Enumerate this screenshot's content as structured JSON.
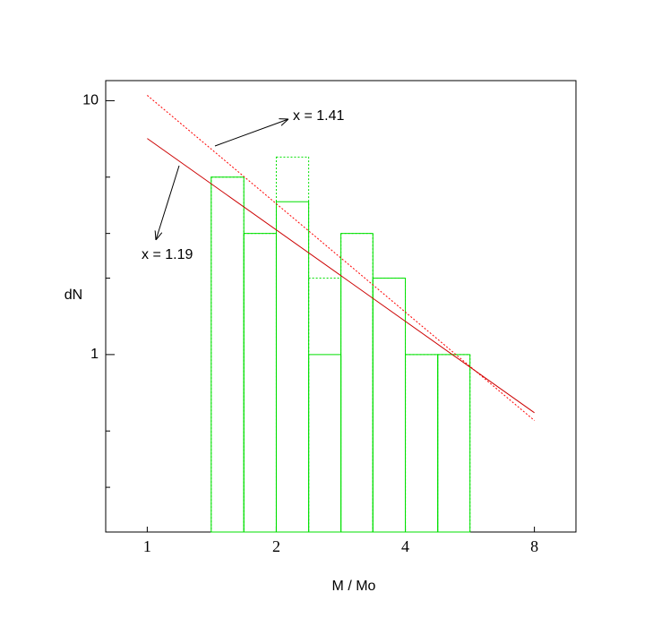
{
  "chart_data": {
    "type": "histogram",
    "bins": [
      1.41,
      1.68,
      2,
      2.38,
      2.83,
      3.36,
      4,
      4.76,
      5.66
    ],
    "series": [
      {
        "color": "#00e000",
        "dash": true,
        "values": [
          5,
          3,
          6,
          2,
          3,
          2,
          1,
          1
        ]
      },
      {
        "color": "#00e000",
        "dash": false,
        "values": [
          5,
          3,
          4,
          1,
          3,
          2,
          1,
          1
        ]
      }
    ],
    "fits": [
      {
        "label": "x = 1.41",
        "color": "#ff0000",
        "dash": true,
        "x": [
          1,
          8
        ],
        "values": [
          10.5,
          0.55
        ]
      },
      {
        "label": "x = 1.19",
        "color": "#cc0000",
        "dash": false,
        "x": [
          1,
          8
        ],
        "values": [
          7.1,
          0.59
        ]
      }
    ],
    "xlabel": "M  /  Mo",
    "ylabel": "dN",
    "xlim": [
      0.8,
      10
    ],
    "ylim": [
      0.2,
      12
    ],
    "xticks": [
      1,
      2,
      4,
      8
    ],
    "yticks": [
      1,
      10
    ],
    "yminorticks": [
      0.3,
      0.5,
      2,
      3,
      5
    ],
    "xlog": true,
    "ylog": true
  }
}
